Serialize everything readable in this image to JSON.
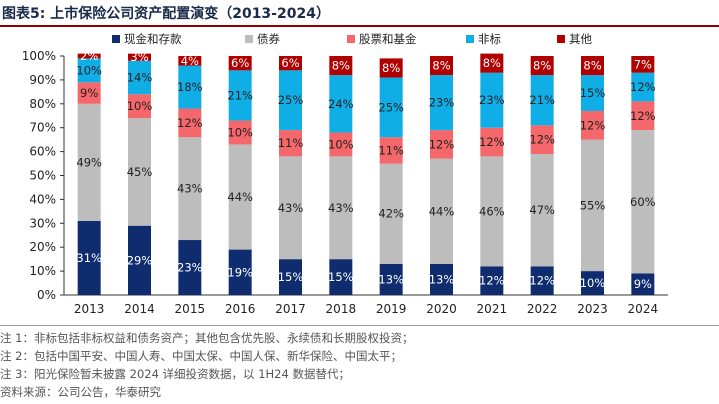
{
  "header": {
    "title": "图表5:  上市保险公司资产配置演变（2013-2024）"
  },
  "chart_data": {
    "type": "bar",
    "stacked": true,
    "categories": [
      "2013",
      "2014",
      "2015",
      "2016",
      "2017",
      "2018",
      "2019",
      "2020",
      "2021",
      "2022",
      "2023",
      "2024"
    ],
    "ylim": [
      0,
      100
    ],
    "yticks": [
      "0%",
      "10%",
      "20%",
      "30%",
      "40%",
      "50%",
      "60%",
      "70%",
      "80%",
      "90%",
      "100%"
    ],
    "legend_position": "top",
    "grid": false,
    "series": [
      {
        "name": "现金和存款",
        "color": "#0f2d6e",
        "label_color": "#ffffff",
        "values": [
          31,
          29,
          23,
          19,
          15,
          15,
          13,
          13,
          12,
          12,
          10,
          9
        ]
      },
      {
        "name": "债券",
        "color": "#bdbdbd",
        "label_color": "#222222",
        "values": [
          49,
          45,
          43,
          44,
          43,
          43,
          42,
          44,
          46,
          47,
          55,
          60
        ]
      },
      {
        "name": "股票和基金",
        "color": "#f4686b",
        "label_color": "#222222",
        "values": [
          9,
          10,
          12,
          10,
          11,
          10,
          11,
          12,
          12,
          12,
          12,
          12
        ]
      },
      {
        "name": "非标",
        "color": "#10aee6",
        "label_color": "#222222",
        "values": [
          10,
          14,
          18,
          21,
          25,
          24,
          25,
          23,
          23,
          21,
          15,
          12
        ]
      },
      {
        "name": "其他",
        "color": "#b00000",
        "label_color": "#ffffff",
        "values": [
          2,
          3,
          4,
          6,
          6,
          8,
          8,
          8,
          8,
          8,
          8,
          7
        ]
      }
    ]
  },
  "notes": {
    "n1": "注 1：非标包括非标权益和债务资产；其他包含优先股、永续债和长期股权投资；",
    "n2": "注 2：包括中国平安、中国人寿、中国太保、中国人保、新华保险、中国太平；",
    "n3": "注 3：阳光保险暂未披露 2024 详细投资数据，以 1H24 数据替代；",
    "source": "资料来源：公司公告，华泰研究"
  }
}
